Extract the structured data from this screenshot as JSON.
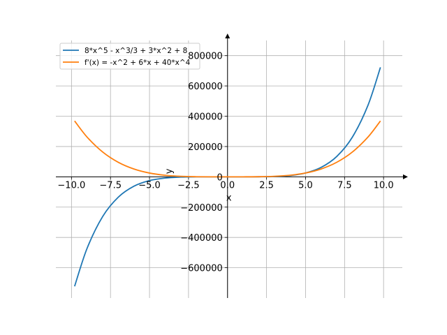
{
  "chart_data": {
    "type": "line",
    "xlabel": "x",
    "ylabel": "y",
    "xlim": [
      -11.0,
      11.2
    ],
    "ylim": [
      -800000,
      900000
    ],
    "grid": true,
    "legend_placement": "top-left",
    "x_ticks": [
      -10.0,
      -7.5,
      -5.0,
      -2.5,
      0.0,
      2.5,
      5.0,
      7.5,
      10.0
    ],
    "x_tick_labels": [
      "−10.0",
      "−7.5",
      "−5.0",
      "−2.5",
      "0.0",
      "2.5",
      "5.0",
      "7.5",
      "10.0"
    ],
    "y_ticks": [
      -600000,
      -400000,
      -200000,
      0,
      200000,
      400000,
      600000,
      800000
    ],
    "y_tick_labels": [
      "−600000",
      "−400000",
      "−200000",
      "0",
      "200000",
      "400000",
      "600000",
      "800000"
    ],
    "series": [
      {
        "name": "8*x^5 - x^3/3 + 3*x^2 + 8",
        "color": "#1f77b4",
        "x": [
          -9.8,
          -9.0,
          -8.0,
          -7.0,
          -6.0,
          -5.0,
          -4.0,
          -3.0,
          -2.0,
          -1.0,
          0.0,
          1.0,
          2.0,
          3.0,
          4.0,
          5.0,
          6.0,
          7.0,
          8.0,
          9.0,
          9.8
        ],
        "y": [
          -722810,
          -472113,
          -261930,
          -134324,
          -62121,
          -24910,
          -8133,
          -1909,
          -209,
          -2,
          8,
          11,
          277,
          1964,
          8219,
          25033,
          62228,
          134459,
          262038,
          472178,
          722868
        ]
      },
      {
        "name": "f'(x) = -x^2 + 6*x + 40*x^4",
        "color": "#ff7f0e",
        "x": [
          -9.8,
          -9.0,
          -8.0,
          -7.0,
          -6.0,
          -5.0,
          -4.0,
          -3.0,
          -2.0,
          -1.0,
          0.0,
          1.0,
          2.0,
          3.0,
          4.0,
          5.0,
          6.0,
          7.0,
          8.0,
          9.0,
          9.8
        ],
        "y": [
          368834,
          262305,
          163728,
          95941,
          51768,
          24945,
          10216,
          3213,
          624,
          33,
          0,
          45,
          648,
          3249,
          10248,
          24995,
          51840,
          95991,
          163776,
          262359,
          368952
        ]
      }
    ]
  }
}
